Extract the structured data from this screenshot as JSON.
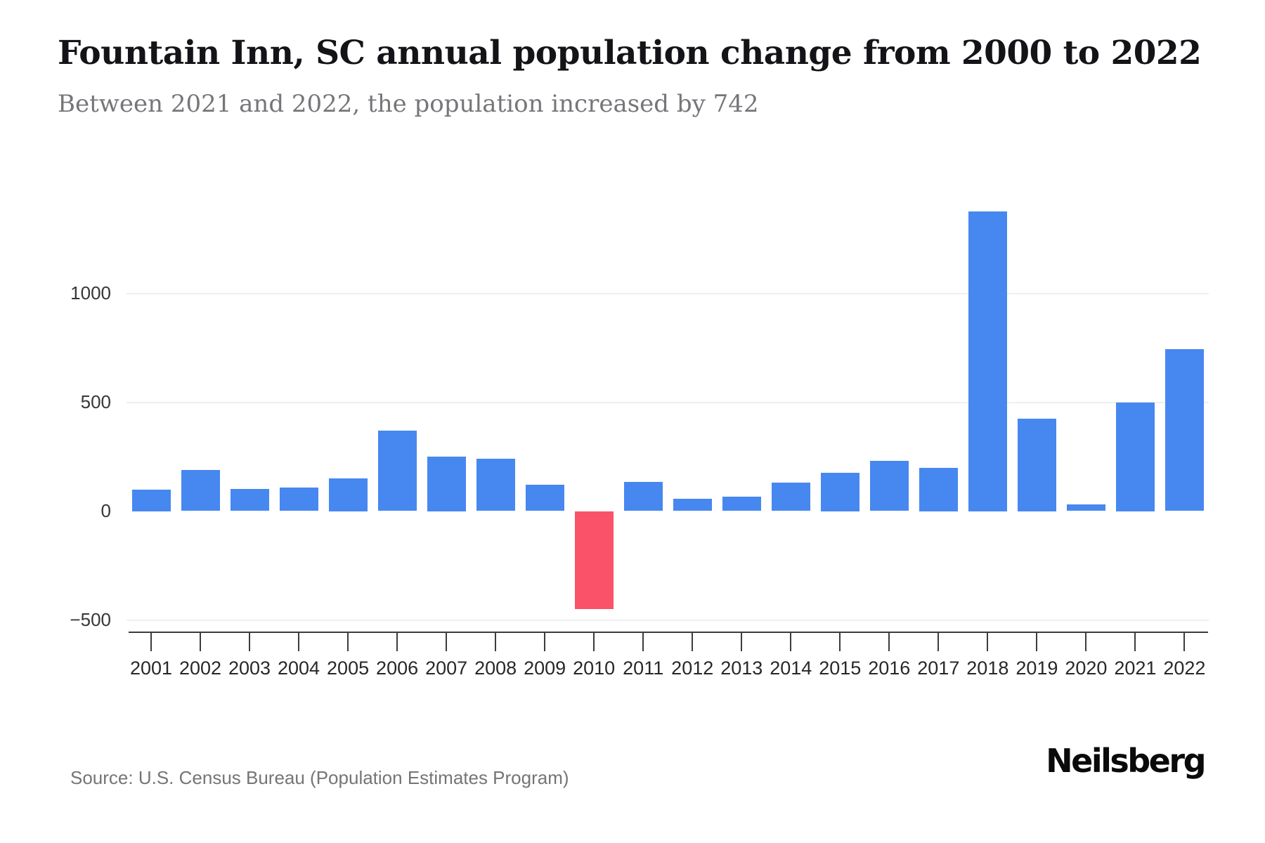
{
  "header": {
    "title": "Fountain Inn, SC annual population change from 2000 to 2022",
    "subtitle": "Between 2021 and 2022, the population increased by 742"
  },
  "footer": {
    "source": "Source: U.S. Census Bureau (Population Estimates Program)",
    "logo": "Neilsberg"
  },
  "chart_data": {
    "type": "bar",
    "title": "Fountain Inn, SC annual population change from 2000 to 2022",
    "xlabel": "",
    "ylabel": "",
    "categories": [
      "2001",
      "2002",
      "2003",
      "2004",
      "2005",
      "2006",
      "2007",
      "2008",
      "2009",
      "2010",
      "2011",
      "2012",
      "2013",
      "2014",
      "2015",
      "2016",
      "2017",
      "2018",
      "2019",
      "2020",
      "2021",
      "2022"
    ],
    "values": [
      100,
      190,
      102,
      108,
      150,
      370,
      250,
      240,
      122,
      -450,
      133,
      55,
      67,
      130,
      175,
      232,
      200,
      1375,
      425,
      32,
      500,
      742
    ],
    "ylim": [
      -500,
      1400
    ],
    "yticks": [
      1000,
      500,
      0,
      -500
    ],
    "ytick_labels": [
      "1000",
      "500",
      "0",
      "−500"
    ],
    "grid": "horizontal-light",
    "legend_position": "none",
    "colors": {
      "bar_positive": "#4787F0",
      "bar_negative": "#FA5269",
      "gridline": "#efeff2",
      "axis": "#3c3c40",
      "title_text": "#141418",
      "subtitle_text": "#76767a",
      "source_text": "#757575"
    }
  }
}
